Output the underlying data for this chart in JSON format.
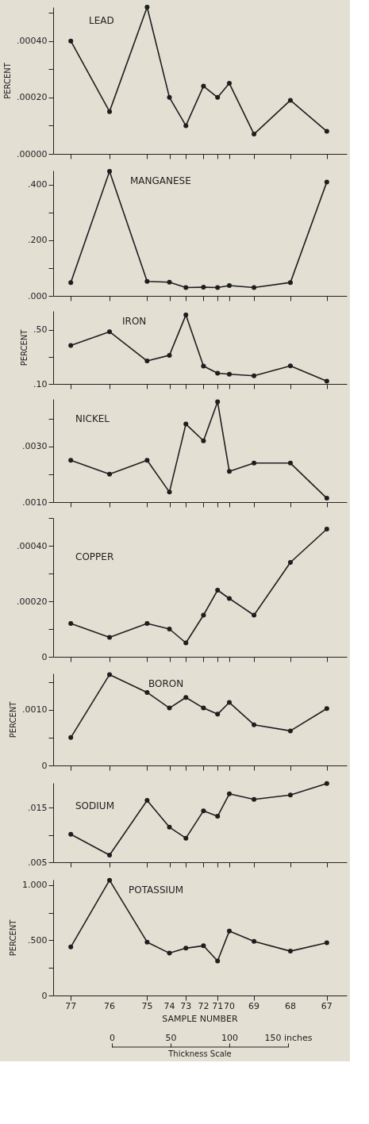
{
  "chart_data": [
    {
      "type": "line",
      "title": "LEAD",
      "ylabel": "PERCENT",
      "x": [
        -35,
        -2,
        30,
        49,
        63,
        78,
        90,
        100,
        121,
        152,
        183
      ],
      "series": [
        {
          "color": "#1e1e1e",
          "values": [
            0.0004,
            0.00015,
            0.00052,
            0.0002,
            0.0001,
            0.00024,
            0.0002,
            0.00025,
            7e-05,
            0.00019,
            8e-05
          ]
        }
      ],
      "xlim": [
        -50,
        200
      ],
      "xticks": [
        -35,
        -2,
        30,
        49,
        63,
        78,
        90,
        100,
        121,
        152,
        183
      ],
      "ylim": [
        0,
        0.00052
      ],
      "yticks": [
        {
          "value": 0,
          "label": ".00000"
        },
        {
          "value": 0.0001,
          "label": null
        },
        {
          "value": 0.0002,
          "label": ".00020"
        },
        {
          "value": 0.0003,
          "label": null
        },
        {
          "value": 0.0004,
          "label": ".00040"
        },
        {
          "value": 0.0005,
          "label": null
        }
      ],
      "marker": "circle",
      "line_style": "solid",
      "tick_labels": "y"
    },
    {
      "type": "line",
      "title": "MANGANESE",
      "x": [
        -35,
        -2,
        30,
        49,
        63,
        78,
        90,
        100,
        121,
        152,
        183
      ],
      "series": [
        {
          "color": "#1e1e1e",
          "values": [
            0.048,
            0.447,
            0.052,
            0.049,
            0.03,
            0.031,
            0.03,
            0.037,
            0.03,
            0.048,
            0.409
          ]
        }
      ],
      "xlim": [
        -50,
        200
      ],
      "xticks": [
        -35,
        -2,
        30,
        49,
        63,
        78,
        90,
        100,
        121,
        152,
        183
      ],
      "ylim": [
        0,
        0.45
      ],
      "yticks": [
        {
          "value": 0,
          "label": ".000"
        },
        {
          "value": 0.1,
          "label": null
        },
        {
          "value": 0.2,
          "label": ".200"
        },
        {
          "value": 0.3,
          "label": null
        },
        {
          "value": 0.4,
          "label": ".400"
        }
      ],
      "marker": "circle",
      "line_style": "solid",
      "tick_labels": "y"
    },
    {
      "type": "line",
      "title": "IRON",
      "ylabel": "PERCENT",
      "x": [
        -35,
        -2,
        30,
        49,
        63,
        78,
        90,
        100,
        121,
        152,
        183
      ],
      "series": [
        {
          "color": "#1e1e1e",
          "values": [
            0.384,
            0.486,
            0.27,
            0.312,
            0.61,
            0.232,
            0.179,
            0.172,
            0.16,
            0.233,
            0.121
          ]
        }
      ],
      "xlim": [
        -50,
        200
      ],
      "xticks": [
        -35,
        -2,
        30,
        49,
        63,
        78,
        90,
        100,
        121,
        152,
        183
      ],
      "ylim": [
        0.1,
        0.64
      ],
      "yticks": [
        {
          "value": 0.1,
          "label": ".10"
        },
        {
          "value": 0.3,
          "label": null
        },
        {
          "value": 0.5,
          "label": ".50"
        }
      ],
      "marker": "circle",
      "line_style": "solid",
      "tick_labels": "y"
    },
    {
      "type": "line",
      "title": "NICKEL",
      "x": [
        -35,
        -2,
        30,
        49,
        63,
        78,
        90,
        100,
        121,
        152,
        183
      ],
      "series": [
        {
          "color": "#1e1e1e",
          "values": [
            0.0025,
            0.002,
            0.0025,
            0.00136,
            0.0038,
            0.0032,
            0.0046,
            0.0021,
            0.0024,
            0.0024,
            0.00114
          ]
        }
      ],
      "xlim": [
        -50,
        200
      ],
      "xticks": [
        -35,
        -2,
        30,
        49,
        63,
        78,
        90,
        100,
        121,
        152,
        183
      ],
      "ylim": [
        0.001,
        0.0047
      ],
      "yticks": [
        {
          "value": 0.001,
          "label": ".0010"
        },
        {
          "value": 0.002,
          "label": null
        },
        {
          "value": 0.003,
          "label": ".0030"
        },
        {
          "value": 0.004,
          "label": null
        }
      ],
      "marker": "circle",
      "line_style": "solid",
      "tick_labels": "y"
    },
    {
      "type": "line",
      "title": "COPPER",
      "x": [
        -35,
        -2,
        30,
        49,
        63,
        78,
        90,
        100,
        121,
        152,
        183
      ],
      "series": [
        {
          "color": "#1e1e1e",
          "values": [
            0.00012,
            7e-05,
            0.00012,
            0.0001,
            5e-05,
            0.00015,
            0.00024,
            0.00021,
            0.00015,
            0.00034,
            0.00046
          ]
        }
      ],
      "xlim": [
        -50,
        200
      ],
      "xticks": [
        -35,
        -2,
        30,
        49,
        63,
        78,
        90,
        100,
        121,
        152,
        183
      ],
      "ylim": [
        0,
        0.0005
      ],
      "yticks": [
        {
          "value": 0,
          "label": "0"
        },
        {
          "value": 0.0001,
          "label": null
        },
        {
          "value": 0.0002,
          "label": ".00020"
        },
        {
          "value": 0.0003,
          "label": null
        },
        {
          "value": 0.0004,
          "label": ".00040"
        },
        {
          "value": 0.0005,
          "label": null
        }
      ],
      "marker": "circle",
      "line_style": "solid",
      "tick_labels": "y"
    },
    {
      "type": "line",
      "title": "BORON",
      "ylabel": "PERCENT",
      "x": [
        -35,
        -2,
        30,
        49,
        63,
        78,
        90,
        100,
        121,
        152,
        183
      ],
      "series": [
        {
          "color": "#1e1e1e",
          "values": [
            0.0005,
            0.00163,
            0.00131,
            0.00103,
            0.00122,
            0.00103,
            0.00092,
            0.00113,
            0.00073,
            0.00062,
            0.00102
          ]
        }
      ],
      "xlim": [
        -50,
        200
      ],
      "xticks": [
        -35,
        -2,
        30,
        49,
        63,
        78,
        90,
        100,
        121,
        152,
        183
      ],
      "ylim": [
        0,
        0.00165
      ],
      "yticks": [
        0,
        {
          "value": 0.0005,
          "label": null
        },
        {
          "value": 0.001,
          "label": ".0010"
        },
        {
          "value": 0.0015,
          "label": null
        }
      ],
      "marker": "circle",
      "line_style": "solid",
      "tick_labels": "y"
    },
    {
      "type": "line",
      "title": "SODIUM",
      "x": [
        -35,
        -2,
        30,
        49,
        63,
        78,
        90,
        100,
        121,
        152,
        183
      ],
      "series": [
        {
          "color": "#1e1e1e",
          "values": [
            0.0101,
            0.0063,
            0.0163,
            0.0114,
            0.0094,
            0.0144,
            0.0134,
            0.0175,
            0.0165,
            0.0173,
            0.0194
          ]
        }
      ],
      "xlim": [
        -50,
        200
      ],
      "xticks": [
        -35,
        -2,
        30,
        49,
        63,
        78,
        90,
        100,
        121,
        152,
        183
      ],
      "ylim": [
        0.005,
        0.0195
      ],
      "yticks": [
        {
          "value": 0.005,
          "label": ".005"
        },
        {
          "value": 0.01,
          "label": null
        },
        {
          "value": 0.015,
          "label": ".015"
        }
      ],
      "marker": "circle",
      "line_style": "solid",
      "tick_labels": "y"
    },
    {
      "type": "line",
      "title": "POTASSIUM",
      "ylabel": "PERCENT",
      "xlabel": "Thickness Scale",
      "x": [
        -35,
        -2,
        30,
        49,
        63,
        78,
        90,
        100,
        121,
        152,
        183
      ],
      "series": [
        {
          "color": "#1e1e1e",
          "values": [
            0.44,
            1.045,
            0.484,
            0.384,
            0.429,
            0.451,
            0.313,
            0.585,
            0.491,
            0.402,
            0.478
          ]
        }
      ],
      "xlim": [
        -50,
        200
      ],
      "xticks": [
        0,
        50,
        100,
        {
          "value": 150,
          "label": "150 inches"
        }
      ],
      "ylim": [
        0,
        1.05
      ],
      "yticks": [
        0,
        {
          "value": 0.25,
          "label": null
        },
        {
          "value": 0.5,
          "label": ".500"
        },
        {
          "value": 0.75,
          "label": null
        },
        {
          "value": 1.0,
          "label": "1.000"
        }
      ],
      "annotations": [
        "77",
        "76",
        "75",
        "74",
        "73",
        "72",
        "71",
        "70",
        "69",
        "68",
        "67",
        "SAMPLE NUMBER"
      ],
      "marker": "circle",
      "line_style": "solid"
    }
  ]
}
